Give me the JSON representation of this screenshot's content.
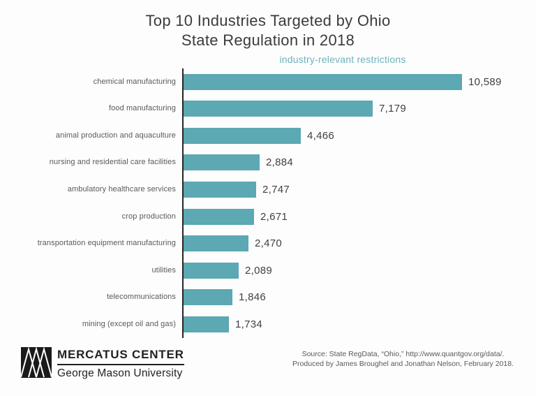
{
  "title": {
    "line1": "Top 10 Industries Targeted by Ohio",
    "line2": "State Regulation in 2018"
  },
  "chart_data": {
    "type": "bar",
    "orientation": "horizontal",
    "subtitle": "industry-relevant restrictions",
    "categories": [
      "chemical manufacturing",
      "food manufacturing",
      "animal production and aquaculture",
      "nursing and residential care facilities",
      "ambulatory healthcare services",
      "crop production",
      "transportation equipment manufacturing",
      "utilities",
      "telecommunications",
      "mining (except oil and gas)"
    ],
    "values": [
      10589,
      7179,
      4466,
      2884,
      2747,
      2671,
      2470,
      2089,
      1846,
      1734
    ],
    "value_labels": [
      "10,589",
      "7,179",
      "4,466",
      "2,884",
      "2,747",
      "2,671",
      "2,470",
      "2,089",
      "1,846",
      "1,734"
    ],
    "xlim": [
      0,
      10589
    ],
    "grid": false,
    "legend": "none",
    "bar_color": "#5ca8b3",
    "subtitle_color": "#6db3bd"
  },
  "footer": {
    "logo": {
      "icon": "mercatus-logo",
      "org": "MERCATUS CENTER",
      "university": "George Mason University"
    },
    "source_line1": "Source: State RegData, “Ohio,” http://www.quantgov.org/data/.",
    "source_line2": "Produced by James Broughel and Jonathan Nelson, February 2018."
  }
}
